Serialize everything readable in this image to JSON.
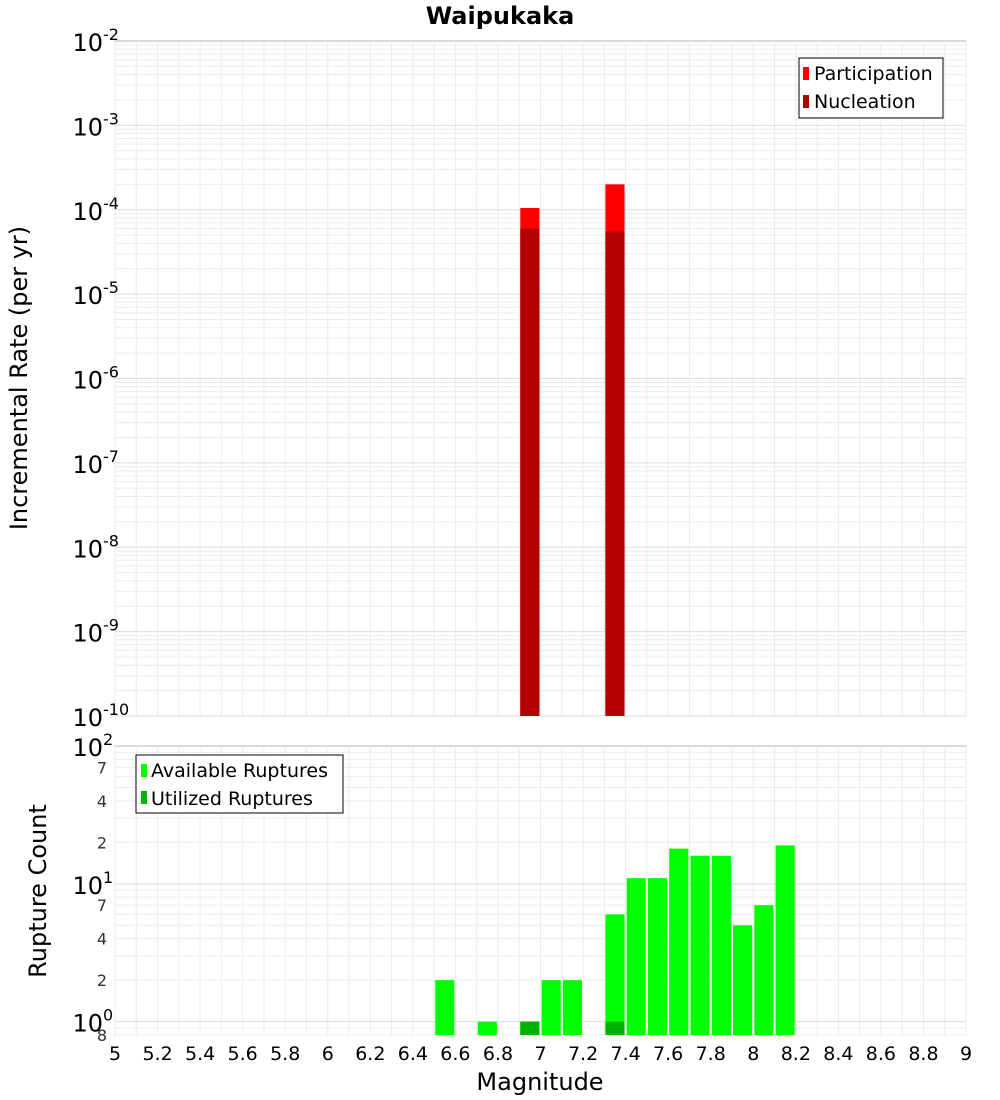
{
  "chart_data": [
    {
      "type": "bar",
      "title": "Waipukaka",
      "xlabel": "",
      "ylabel": "Incremental Rate (per yr)",
      "xlim": [
        5,
        9
      ],
      "ylim": [
        1e-10,
        0.01
      ],
      "y_scale": "log",
      "grid": true,
      "legend_position": "top-right",
      "x_ticks": [
        "5",
        "5.2",
        "5.4",
        "5.6",
        "5.8",
        "6",
        "6.2",
        "6.4",
        "6.6",
        "6.8",
        "7",
        "7.2",
        "7.4",
        "7.6",
        "7.8",
        "8",
        "8.2",
        "8.4",
        "8.6",
        "8.8",
        "9"
      ],
      "y_ticks": [
        {
          "base": "10",
          "exp": "-2",
          "value": 0.01
        },
        {
          "base": "10",
          "exp": "-3",
          "value": 0.001
        },
        {
          "base": "10",
          "exp": "-4",
          "value": 0.0001
        },
        {
          "base": "10",
          "exp": "-5",
          "value": 1e-05
        },
        {
          "base": "10",
          "exp": "-6",
          "value": 1e-06
        },
        {
          "base": "10",
          "exp": "-7",
          "value": 1e-07
        },
        {
          "base": "10",
          "exp": "-8",
          "value": 1e-08
        },
        {
          "base": "10",
          "exp": "-9",
          "value": 1e-09
        },
        {
          "base": "10",
          "exp": "-10",
          "value": 1e-10
        }
      ],
      "bar_width": 0.09,
      "series": [
        {
          "name": "Participation",
          "color": "#ff0000",
          "x": [
            6.95,
            7.35
          ],
          "values": [
            0.000105,
            0.0002
          ]
        },
        {
          "name": "Nucleation",
          "color": "#b20000",
          "x": [
            6.95,
            7.35
          ],
          "values": [
            6e-05,
            5.5e-05
          ]
        }
      ]
    },
    {
      "type": "bar",
      "title": "",
      "xlabel": "Magnitude",
      "ylabel": "Rupture Count",
      "xlim": [
        5,
        9
      ],
      "ylim": [
        0.8,
        100
      ],
      "y_scale": "log",
      "grid": true,
      "legend_position": "top-left",
      "x_ticks": [
        "5",
        "5.2",
        "5.4",
        "5.6",
        "5.8",
        "6",
        "6.2",
        "6.4",
        "6.6",
        "6.8",
        "7",
        "7.2",
        "7.4",
        "7.6",
        "7.8",
        "8",
        "8.2",
        "8.4",
        "8.6",
        "8.8",
        "9"
      ],
      "y_ticks": [
        {
          "base": "10",
          "exp": "2",
          "value": 100,
          "major": true
        },
        {
          "label": "7",
          "value": 70
        },
        {
          "label": "4",
          "value": 40
        },
        {
          "label": "2",
          "value": 20
        },
        {
          "base": "10",
          "exp": "1",
          "value": 10,
          "major": true
        },
        {
          "label": "7",
          "value": 7
        },
        {
          "label": "4",
          "value": 4
        },
        {
          "label": "2",
          "value": 2
        },
        {
          "base": "10",
          "exp": "0",
          "value": 1,
          "major": true
        },
        {
          "label": "8",
          "value": 0.8
        }
      ],
      "bar_width": 0.09,
      "series": [
        {
          "name": "Available Ruptures",
          "color": "#00ff00",
          "x": [
            6.55,
            6.75,
            6.95,
            7.05,
            7.15,
            7.35,
            7.45,
            7.55,
            7.65,
            7.75,
            7.85,
            7.95,
            8.05,
            8.15
          ],
          "values": [
            2,
            1,
            1,
            2,
            2,
            6,
            11,
            11,
            18,
            16,
            16,
            5,
            7,
            19
          ]
        },
        {
          "name": "Utilized Ruptures",
          "color": "#00b200",
          "x": [
            6.95,
            7.35
          ],
          "values": [
            1,
            1
          ]
        }
      ]
    }
  ]
}
